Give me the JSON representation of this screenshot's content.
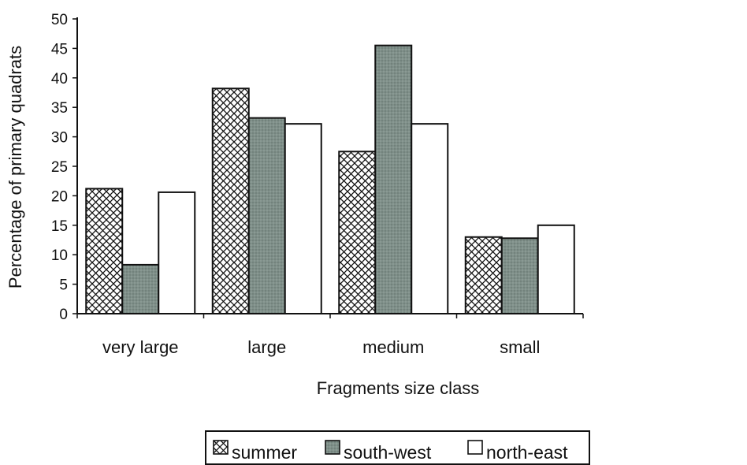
{
  "chart_data": {
    "type": "bar",
    "title": "",
    "xlabel": "Fragments size class",
    "ylabel": "Percentage of primary quadrats",
    "categories": [
      "very large",
      "large",
      "medium",
      "small"
    ],
    "series": [
      {
        "name": "summer",
        "values": [
          21.2,
          38.2,
          27.5,
          13
        ]
      },
      {
        "name": "south-west",
        "values": [
          8.3,
          33.2,
          45.5,
          12.8
        ]
      },
      {
        "name": "north-east",
        "values": [
          20.6,
          32.2,
          32.2,
          15
        ]
      }
    ],
    "ylim": [
      0,
      50
    ],
    "yticks": [
      0,
      5,
      10,
      15,
      20,
      25,
      30,
      35,
      40,
      45,
      50
    ],
    "grid": false,
    "legend_position": "bottom"
  },
  "colors": {
    "summer": "#ffffff",
    "south-west": "#7f8f89",
    "north-east": "#ffffff",
    "axis": "#111111"
  }
}
